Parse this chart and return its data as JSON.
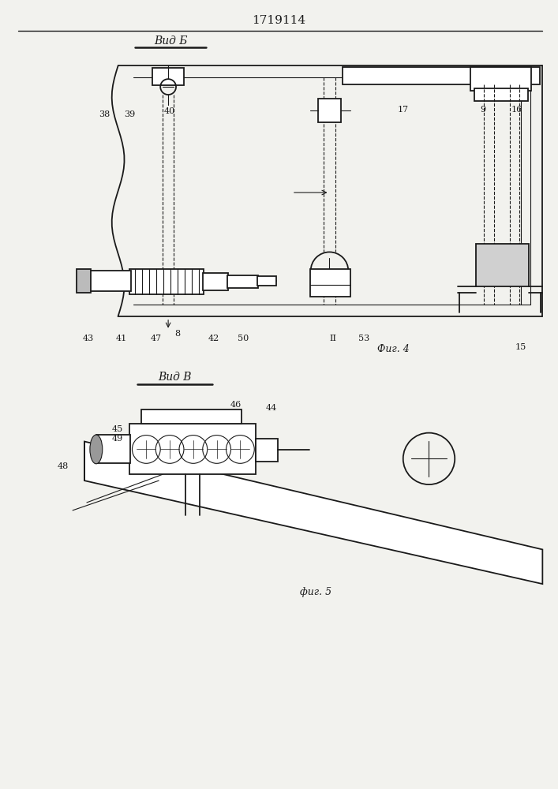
{
  "title": "1719114",
  "bg_color": "#f2f2ee",
  "line_color": "#1a1a1a",
  "fig4_label": "Фиг. 4",
  "fig5_label": "фиг. 5",
  "vid_b_label": "Вид Б",
  "vid_v_label": "Вид В"
}
